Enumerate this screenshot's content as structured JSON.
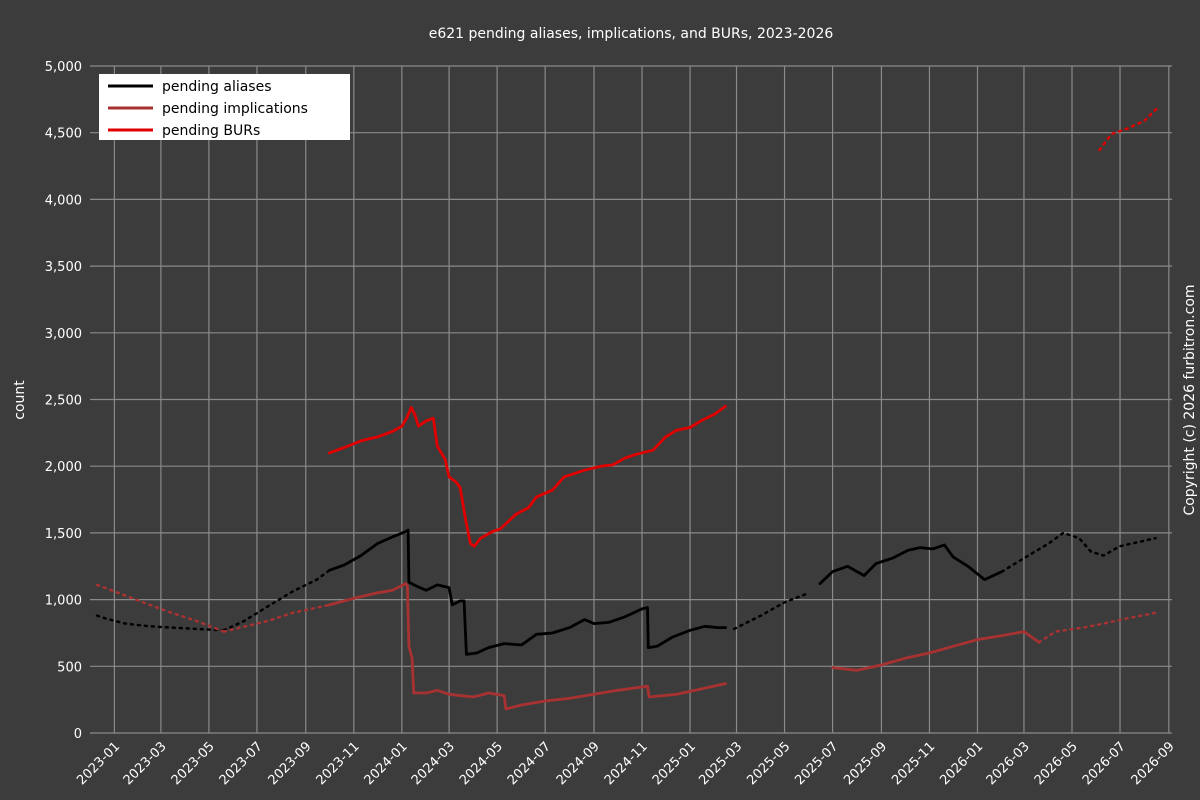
{
  "chart_data": {
    "type": "line",
    "title": "e621 pending aliases, implications, and BURs, 2023-2026",
    "xlabel": "",
    "ylabel": "count",
    "copyright": "Copyright (c) 2026 furbitron.com",
    "x_range": [
      "2022-12-01",
      "2026-09-05"
    ],
    "ylim": [
      0,
      5000
    ],
    "y_ticks": [
      0,
      500,
      1000,
      1500,
      2000,
      2500,
      3000,
      3500,
      4000,
      4500,
      5000
    ],
    "y_tick_labels": [
      "0",
      "500",
      "1,000",
      "1,500",
      "2,000",
      "2,500",
      "3,000",
      "3,500",
      "4,000",
      "4,500",
      "5,000"
    ],
    "x_ticks": [
      "2023-01",
      "2023-03",
      "2023-05",
      "2023-07",
      "2023-09",
      "2023-11",
      "2024-01",
      "2024-03",
      "2024-05",
      "2024-07",
      "2024-09",
      "2024-11",
      "2025-01",
      "2025-03",
      "2025-05",
      "2025-07",
      "2025-09",
      "2025-11",
      "2026-01",
      "2026-03",
      "2026-05",
      "2026-07",
      "2026-09"
    ],
    "grid": true,
    "legend_position": "top-left",
    "colors": {
      "background": "#3c3c3c",
      "grid": "#8a8a8a",
      "text": "#ffffff"
    },
    "series": [
      {
        "name": "pending aliases",
        "color": "#000000",
        "segments": [
          {
            "style": "dotted",
            "points": [
              [
                "2022-12-10",
                880
              ],
              [
                "2022-12-20",
                860
              ],
              [
                "2023-01-15",
                820
              ],
              [
                "2023-02-15",
                800
              ],
              [
                "2023-03-15",
                790
              ],
              [
                "2023-04-15",
                780
              ],
              [
                "2023-05-20",
                770
              ]
            ]
          },
          {
            "style": "dotted",
            "points": [
              [
                "2023-05-20",
                770
              ],
              [
                "2023-06-15",
                840
              ],
              [
                "2023-07-15",
                950
              ],
              [
                "2023-08-15",
                1060
              ],
              [
                "2023-09-15",
                1150
              ],
              [
                "2023-10-01",
                1220
              ]
            ]
          },
          {
            "style": "solid",
            "points": [
              [
                "2023-10-01",
                1220
              ],
              [
                "2023-10-20",
                1260
              ],
              [
                "2023-11-10",
                1330
              ],
              [
                "2023-12-01",
                1420
              ],
              [
                "2023-12-20",
                1470
              ],
              [
                "2024-01-06",
                1510
              ],
              [
                "2024-01-09",
                1520
              ],
              [
                "2024-01-10",
                1130
              ],
              [
                "2024-01-20",
                1100
              ],
              [
                "2024-02-01",
                1070
              ],
              [
                "2024-02-15",
                1110
              ],
              [
                "2024-03-01",
                1090
              ],
              [
                "2024-03-05",
                960
              ],
              [
                "2024-03-15",
                990
              ],
              [
                "2024-03-20",
                990
              ],
              [
                "2024-03-23",
                590
              ],
              [
                "2024-04-05",
                600
              ],
              [
                "2024-04-20",
                640
              ],
              [
                "2024-05-10",
                670
              ],
              [
                "2024-06-01",
                660
              ],
              [
                "2024-06-20",
                740
              ],
              [
                "2024-07-10",
                750
              ],
              [
                "2024-08-01",
                790
              ],
              [
                "2024-08-20",
                850
              ],
              [
                "2024-09-01",
                820
              ],
              [
                "2024-09-20",
                830
              ],
              [
                "2024-10-10",
                870
              ],
              [
                "2024-11-01",
                930
              ],
              [
                "2024-11-08",
                940
              ],
              [
                "2024-11-09",
                640
              ],
              [
                "2024-11-20",
                650
              ],
              [
                "2024-12-10",
                720
              ],
              [
                "2025-01-01",
                770
              ],
              [
                "2025-01-20",
                800
              ],
              [
                "2025-02-05",
                790
              ],
              [
                "2025-02-15",
                790
              ]
            ]
          },
          {
            "style": "dotted",
            "points": [
              [
                "2025-02-26",
                780
              ],
              [
                "2025-04-01",
                880
              ],
              [
                "2025-05-01",
                980
              ],
              [
                "2025-06-01",
                1050
              ]
            ]
          },
          {
            "style": "solid",
            "points": [
              [
                "2025-06-15",
                1120
              ],
              [
                "2025-07-01",
                1210
              ],
              [
                "2025-07-20",
                1250
              ],
              [
                "2025-08-10",
                1180
              ],
              [
                "2025-08-25",
                1270
              ],
              [
                "2025-09-15",
                1310
              ],
              [
                "2025-10-05",
                1370
              ],
              [
                "2025-10-20",
                1390
              ],
              [
                "2025-11-05",
                1380
              ],
              [
                "2025-11-20",
                1410
              ],
              [
                "2025-12-01",
                1320
              ],
              [
                "2025-12-20",
                1250
              ],
              [
                "2026-01-10",
                1150
              ],
              [
                "2026-02-01",
                1210
              ]
            ]
          },
          {
            "style": "dotted",
            "points": [
              [
                "2026-02-01",
                1210
              ],
              [
                "2026-03-01",
                1310
              ],
              [
                "2026-04-01",
                1420
              ],
              [
                "2026-04-20",
                1500
              ],
              [
                "2026-05-10",
                1460
              ],
              [
                "2026-05-25",
                1360
              ],
              [
                "2026-06-10",
                1330
              ],
              [
                "2026-07-01",
                1400
              ],
              [
                "2026-08-15",
                1460
              ]
            ]
          }
        ]
      },
      {
        "name": "pending implications",
        "color": "#a83232",
        "segments": [
          {
            "style": "dotted",
            "points": [
              [
                "2022-12-10",
                1110
              ],
              [
                "2023-01-15",
                1030
              ],
              [
                "2023-02-15",
                960
              ],
              [
                "2023-03-15",
                900
              ],
              [
                "2023-04-15",
                840
              ],
              [
                "2023-05-20",
                760
              ]
            ]
          },
          {
            "style": "dotted",
            "points": [
              [
                "2023-05-20",
                760
              ],
              [
                "2023-07-15",
                840
              ],
              [
                "2023-08-15",
                900
              ],
              [
                "2023-10-01",
                960
              ]
            ]
          },
          {
            "style": "solid",
            "points": [
              [
                "2023-10-01",
                960
              ],
              [
                "2023-11-01",
                1010
              ],
              [
                "2023-12-01",
                1050
              ],
              [
                "2023-12-20",
                1070
              ],
              [
                "2024-01-06",
                1120
              ],
              [
                "2024-01-08",
                1100
              ],
              [
                "2024-01-10",
                650
              ],
              [
                "2024-01-14",
                560
              ],
              [
                "2024-01-16",
                300
              ],
              [
                "2024-02-01",
                300
              ],
              [
                "2024-02-15",
                320
              ],
              [
                "2024-03-01",
                290
              ],
              [
                "2024-04-01",
                270
              ],
              [
                "2024-04-20",
                300
              ],
              [
                "2024-05-10",
                280
              ],
              [
                "2024-05-12",
                180
              ],
              [
                "2024-06-01",
                210
              ],
              [
                "2024-07-01",
                240
              ],
              [
                "2024-08-01",
                260
              ],
              [
                "2024-09-01",
                290
              ],
              [
                "2024-10-01",
                320
              ],
              [
                "2024-11-08",
                350
              ],
              [
                "2024-11-10",
                270
              ],
              [
                "2024-12-15",
                290
              ],
              [
                "2025-01-15",
                330
              ],
              [
                "2025-02-15",
                370
              ]
            ]
          },
          {
            "style": "solid",
            "points": [
              [
                "2025-07-01",
                490
              ],
              [
                "2025-08-01",
                470
              ],
              [
                "2025-09-01",
                510
              ],
              [
                "2025-10-01",
                560
              ],
              [
                "2025-11-01",
                600
              ],
              [
                "2025-12-01",
                650
              ],
              [
                "2026-01-01",
                700
              ],
              [
                "2026-02-01",
                730
              ],
              [
                "2026-03-01",
                760
              ],
              [
                "2026-03-20",
                680
              ]
            ]
          },
          {
            "style": "dotted",
            "points": [
              [
                "2026-03-20",
                680
              ],
              [
                "2026-04-10",
                760
              ],
              [
                "2026-05-15",
                790
              ],
              [
                "2026-06-10",
                820
              ],
              [
                "2026-07-10",
                860
              ],
              [
                "2026-08-15",
                900
              ]
            ]
          }
        ]
      },
      {
        "name": "pending BURs",
        "color": "#e00000",
        "segments": [
          {
            "style": "solid",
            "points": [
              [
                "2023-10-01",
                2100
              ],
              [
                "2023-10-20",
                2140
              ],
              [
                "2023-11-10",
                2190
              ],
              [
                "2023-12-01",
                2220
              ],
              [
                "2023-12-20",
                2260
              ],
              [
                "2024-01-01",
                2300
              ],
              [
                "2024-01-07",
                2360
              ],
              [
                "2024-01-13",
                2440
              ],
              [
                "2024-01-18",
                2380
              ],
              [
                "2024-01-22",
                2300
              ],
              [
                "2024-02-01",
                2340
              ],
              [
                "2024-02-10",
                2360
              ],
              [
                "2024-02-15",
                2150
              ],
              [
                "2024-02-25",
                2050
              ],
              [
                "2024-03-01",
                1920
              ],
              [
                "2024-03-10",
                1880
              ],
              [
                "2024-03-15",
                1840
              ],
              [
                "2024-03-22",
                1600
              ],
              [
                "2024-03-28",
                1420
              ],
              [
                "2024-04-02",
                1400
              ],
              [
                "2024-04-10",
                1460
              ],
              [
                "2024-04-25",
                1510
              ],
              [
                "2024-05-05",
                1530
              ],
              [
                "2024-05-25",
                1640
              ],
              [
                "2024-06-10",
                1690
              ],
              [
                "2024-06-20",
                1770
              ],
              [
                "2024-07-10",
                1820
              ],
              [
                "2024-07-25",
                1920
              ],
              [
                "2024-08-20",
                1970
              ],
              [
                "2024-09-10",
                2000
              ],
              [
                "2024-09-25",
                2010
              ],
              [
                "2024-10-10",
                2060
              ],
              [
                "2024-10-25",
                2090
              ],
              [
                "2024-11-15",
                2120
              ],
              [
                "2024-12-01",
                2220
              ],
              [
                "2024-12-15",
                2270
              ],
              [
                "2025-01-01",
                2290
              ],
              [
                "2025-01-15",
                2340
              ],
              [
                "2025-02-01",
                2390
              ],
              [
                "2025-02-15",
                2450
              ]
            ]
          },
          {
            "style": "dotted",
            "points": [
              [
                "2026-06-05",
                4370
              ],
              [
                "2026-06-20",
                4490
              ],
              [
                "2026-07-10",
                4530
              ],
              [
                "2026-08-01",
                4590
              ],
              [
                "2026-08-20",
                4700
              ]
            ]
          }
        ]
      }
    ]
  }
}
